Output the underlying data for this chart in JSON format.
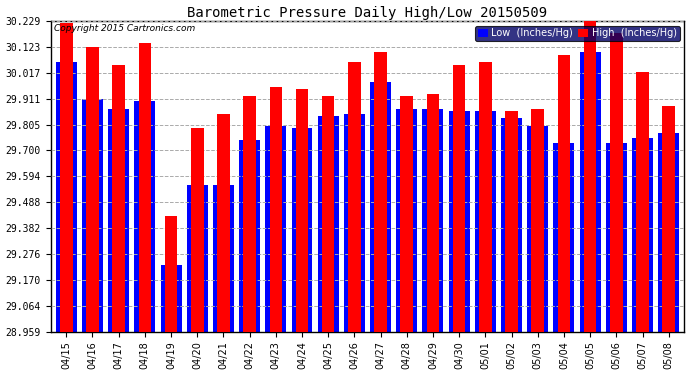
{
  "title": "Barometric Pressure Daily High/Low 20150509",
  "copyright": "Copyright 2015 Cartronics.com",
  "legend_low": "Low  (Inches/Hg)",
  "legend_high": "High  (Inches/Hg)",
  "color_low": "#0000ff",
  "color_high": "#ff0000",
  "bg_color": "#ffffff",
  "plot_bg_color": "#ffffff",
  "dates": [
    "04/15",
    "04/16",
    "04/17",
    "04/18",
    "04/19",
    "04/20",
    "04/21",
    "04/22",
    "04/23",
    "04/24",
    "04/25",
    "04/26",
    "04/27",
    "04/28",
    "04/29",
    "04/30",
    "05/01",
    "05/02",
    "05/03",
    "05/04",
    "05/05",
    "05/06",
    "05/07",
    "05/08"
  ],
  "low_values": [
    30.06,
    29.91,
    29.87,
    29.9,
    29.23,
    29.56,
    29.56,
    29.74,
    29.8,
    29.79,
    29.84,
    29.85,
    29.98,
    29.87,
    29.87,
    29.86,
    29.86,
    29.83,
    29.8,
    29.73,
    30.1,
    29.73,
    29.75,
    29.77
  ],
  "high_values": [
    30.22,
    30.12,
    30.05,
    30.14,
    29.43,
    29.79,
    29.85,
    29.92,
    29.96,
    29.95,
    29.92,
    30.06,
    30.1,
    29.92,
    29.93,
    30.05,
    30.06,
    29.86,
    29.87,
    30.09,
    30.23,
    30.18,
    30.02,
    29.88
  ],
  "ymin": 28.959,
  "ymax": 30.229,
  "yticks": [
    28.959,
    29.064,
    29.17,
    29.276,
    29.382,
    29.488,
    29.594,
    29.7,
    29.805,
    29.911,
    30.017,
    30.123,
    30.229
  ],
  "grid_color": "#aaaaaa",
  "title_color": "#000000",
  "tick_color": "#000000",
  "title_fontsize": 10,
  "copyright_fontsize": 6.5,
  "tick_fontsize": 7,
  "legend_fontsize": 7,
  "bar_width": 0.8,
  "legend_bg": "#000066"
}
